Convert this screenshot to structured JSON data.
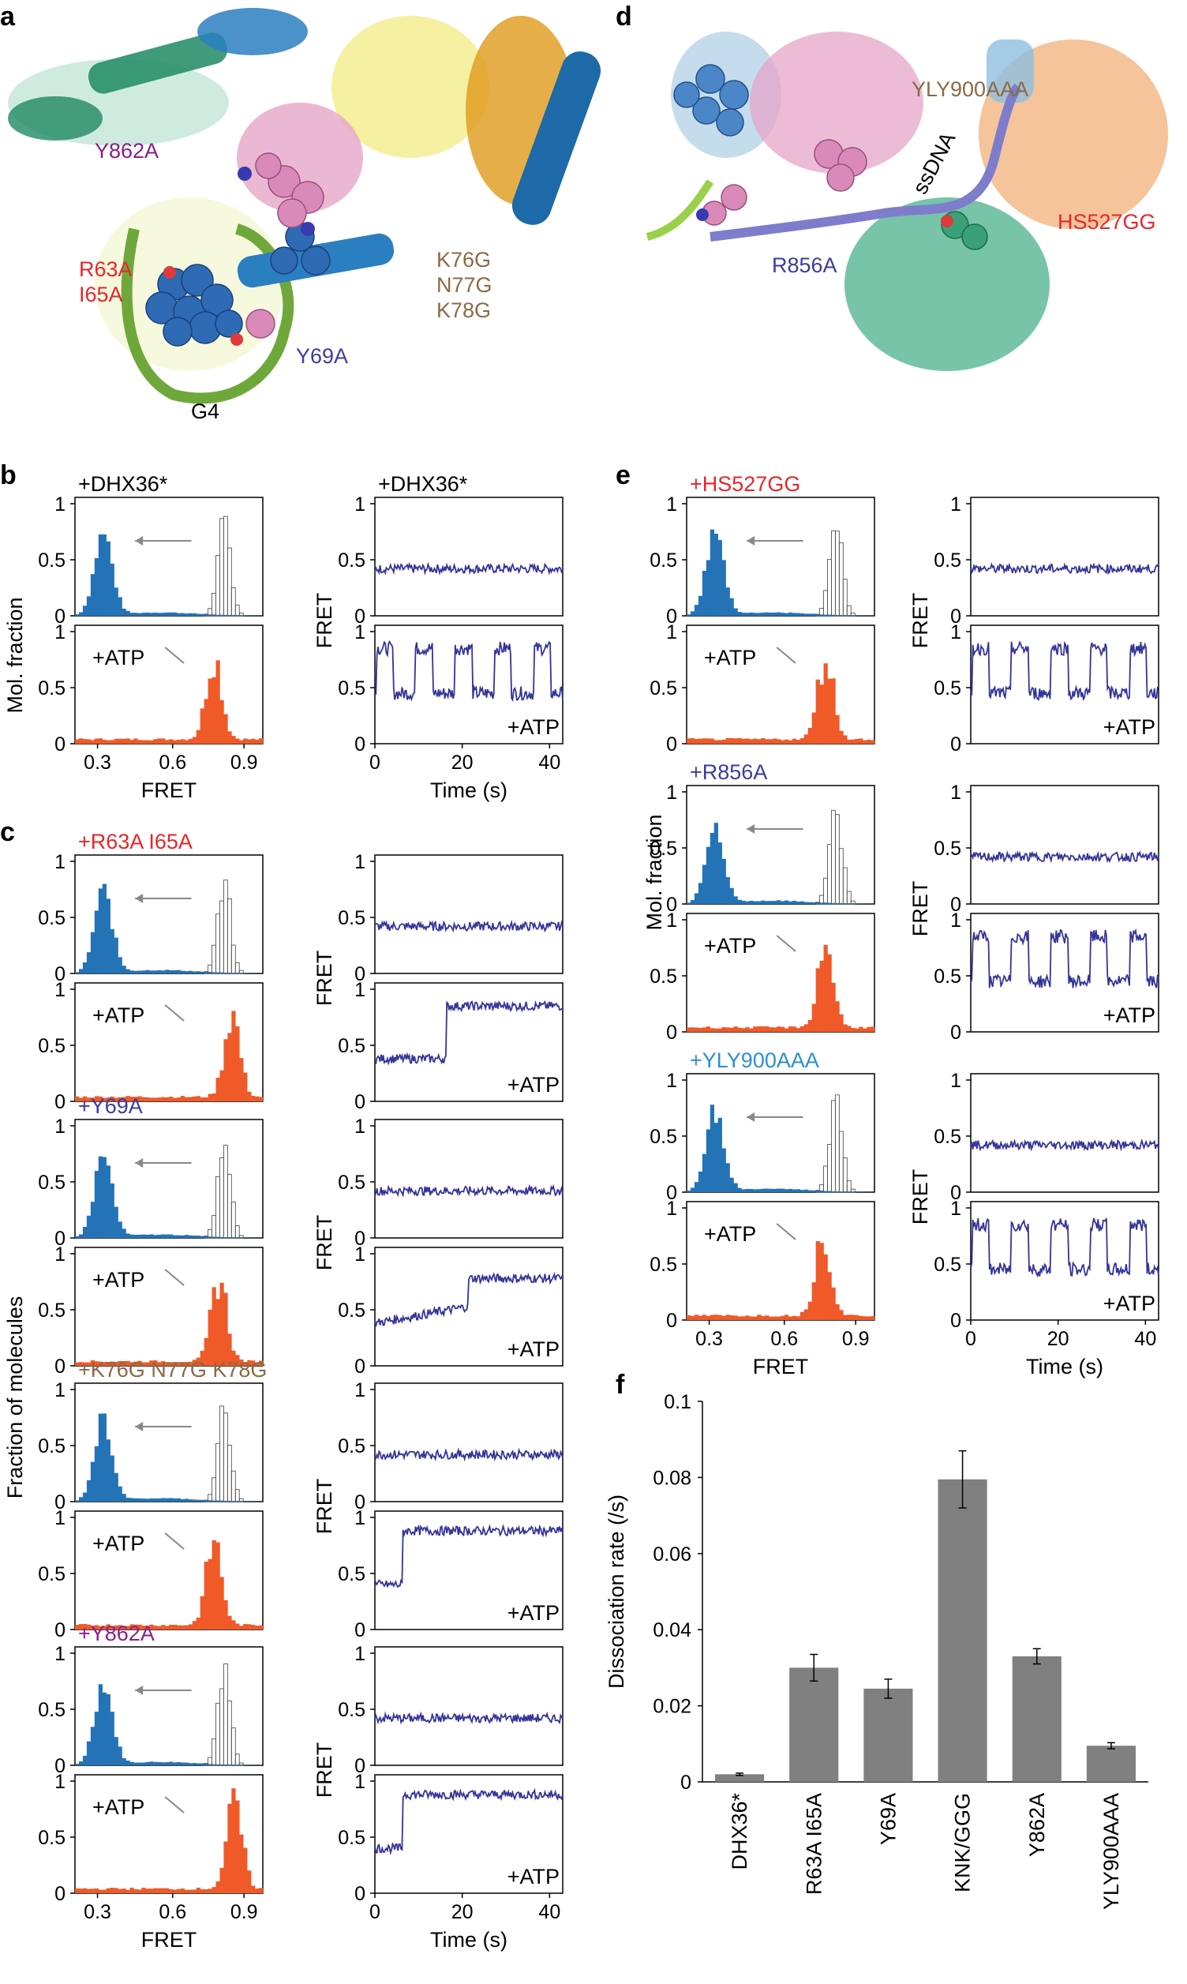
{
  "colors": {
    "blue_hist": "#2473b6",
    "orange_hist": "#f05a28",
    "trace": "#34349a",
    "bar": "#808080",
    "red": "#e8262a",
    "navy": "#3c3ca0",
    "brown": "#8b6a45",
    "purple": "#8b1f8b",
    "lightblue": "#2c8fd0",
    "black": "#000000"
  },
  "panel_labels": {
    "a": "a",
    "b": "b",
    "c": "c",
    "d": "d",
    "e": "e",
    "f": "f"
  },
  "structure_a": {
    "labels": [
      {
        "text": "Y862A",
        "color": "#8b1f8b"
      },
      {
        "text": "R63A",
        "color": "#e8262a"
      },
      {
        "text": "I65A",
        "color": "#e8262a"
      },
      {
        "text": "K76G",
        "color": "#8b6a45"
      },
      {
        "text": "N77G",
        "color": "#8b6a45"
      },
      {
        "text": "K78G",
        "color": "#8b6a45"
      },
      {
        "text": "Y69A",
        "color": "#3c3ca0"
      },
      {
        "text": "G4",
        "color": "#000000"
      }
    ]
  },
  "structure_d": {
    "labels": [
      {
        "text": "YLY900AAA",
        "color": "#8b6a45"
      },
      {
        "text": "ssDNA",
        "color": "#000000"
      },
      {
        "text": "HS527GG",
        "color": "#e8262a"
      },
      {
        "text": "R856A",
        "color": "#3c3ca0"
      }
    ]
  },
  "axes": {
    "y_ticks": [
      "0",
      "0.5",
      "1"
    ],
    "fret_ticks": [
      "0.3",
      "0.6",
      "0.9"
    ],
    "time_ticks": [
      "0",
      "20",
      "40"
    ],
    "fret_label": "FRET",
    "time_label": "Time (s)",
    "mol_fraction": "Mol. fraction",
    "fraction_of_molecules": "Fraction of molecules",
    "atp_label": "+ATP"
  },
  "hist_panels": [
    {
      "id": "b",
      "title": "+DHX36*",
      "color": "#000000",
      "trace_title": "+DHX36*",
      "shifted_peak": 0.76
    },
    {
      "id": "c1",
      "title": "+R63A I65A",
      "color": "#e8262a",
      "trace_title": "",
      "shifted_peak": 0.83
    },
    {
      "id": "c2",
      "title": "+Y69A",
      "color": "#3c3ca0",
      "trace_title": "",
      "shifted_peak": 0.78
    },
    {
      "id": "c3",
      "title": "+K76G N77G K78G",
      "color": "#8b6a45",
      "trace_title": "",
      "shifted_peak": 0.76
    },
    {
      "id": "c4",
      "title": "+Y862A",
      "color": "#8b1f8b",
      "trace_title": "",
      "shifted_peak": 0.84
    },
    {
      "id": "e1",
      "title": "+HS527GG",
      "color": "#e8262a",
      "trace_title": "",
      "shifted_peak": 0.76
    },
    {
      "id": "e2",
      "title": "+R856A",
      "color": "#3c3ca0",
      "trace_title": "",
      "shifted_peak": 0.76
    },
    {
      "id": "e3",
      "title": "+YLY900AAA",
      "color": "#2c8fd0",
      "trace_title": "",
      "shifted_peak": 0.75
    }
  ],
  "chart_data": {
    "type": "bar",
    "title": "",
    "xlabel": "",
    "ylabel": "Dissociation rate (/s)",
    "ylim": [
      0,
      0.1
    ],
    "y_ticks": [
      "0",
      "0.02",
      "0.04",
      "0.06",
      "0.08",
      "0.1"
    ],
    "categories": [
      "DHX36*",
      "R63A I65A",
      "Y69A",
      "KNK/GGG",
      "Y862A",
      "YLY900AAA"
    ],
    "category_colors": [
      "#000000",
      "#e8262a",
      "#3c3ca0",
      "#8b6a45",
      "#8b1f8b",
      "#2c8fd0"
    ],
    "values": [
      0.002,
      0.03,
      0.0245,
      0.0795,
      0.033,
      0.0095
    ],
    "errors": [
      0.0003,
      0.0035,
      0.0025,
      0.0075,
      0.002,
      0.0008
    ]
  }
}
